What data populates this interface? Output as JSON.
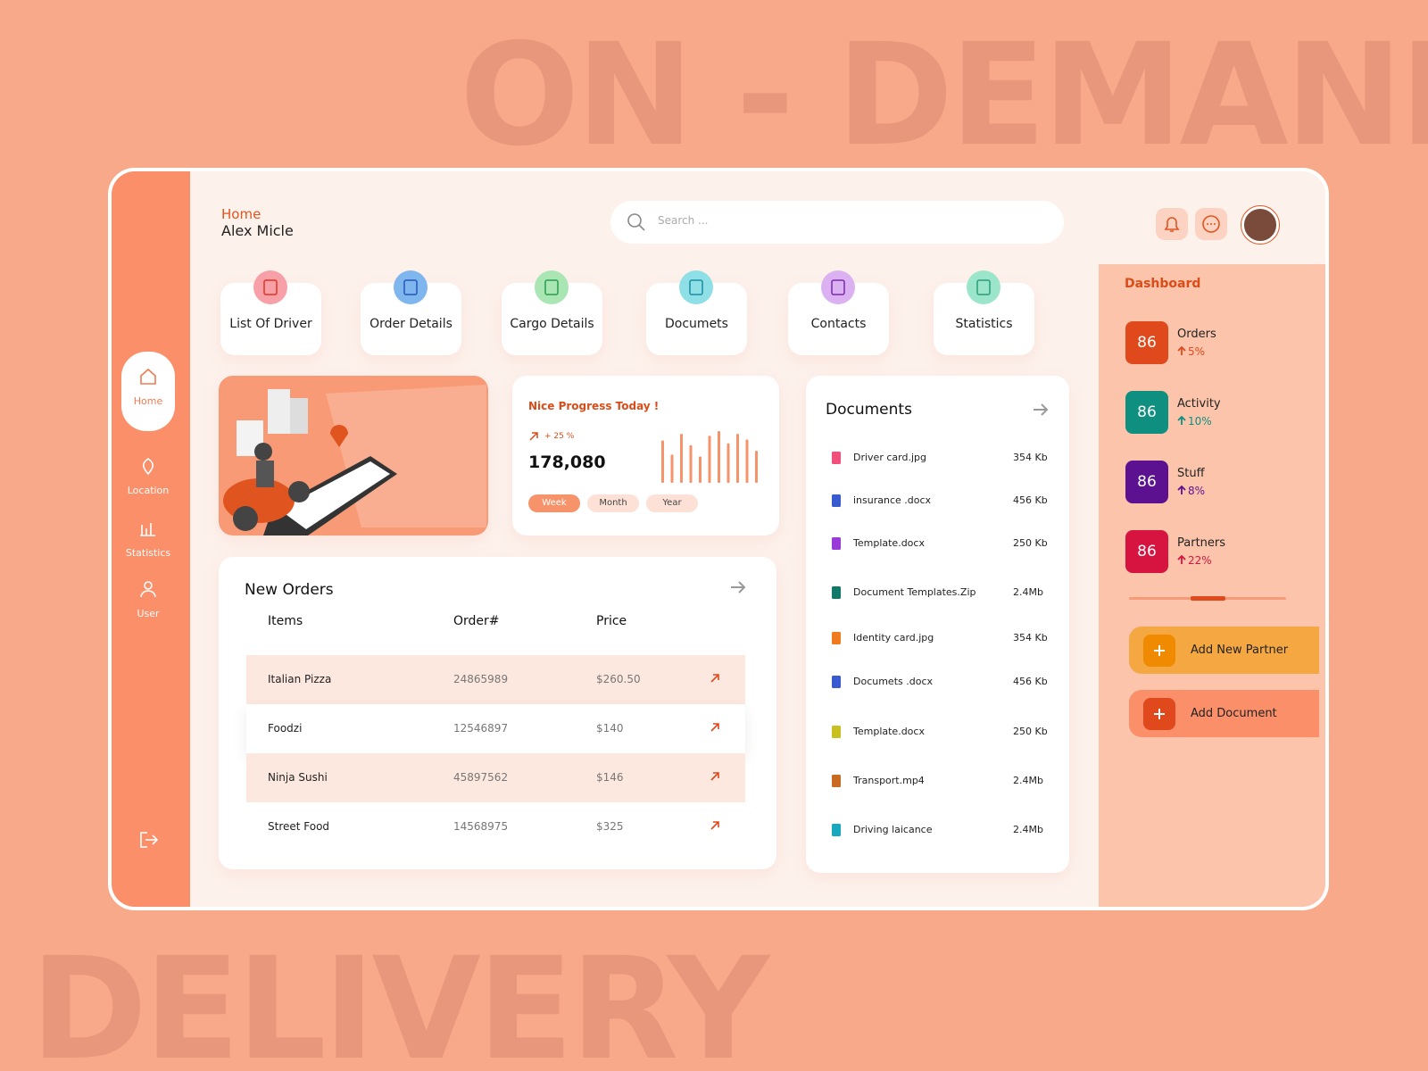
{
  "background_text": [
    "ON - DEMAND",
    "DELIVERY"
  ],
  "header": {
    "breadcrumb": "Home",
    "user": "Alex Micle",
    "search_placeholder": "Search ..."
  },
  "sidebar": {
    "items": [
      "Home",
      "Location",
      "Statistics",
      "User"
    ]
  },
  "shortcuts": [
    "List Of Driver",
    "Order Details",
    "Cargo Details",
    "Documets",
    "Contacts",
    "Statistics"
  ],
  "progress": {
    "title": "Nice Progress Today !",
    "change": "+ 25 %",
    "value": "178,080",
    "bars": [
      45,
      30,
      52,
      40,
      28,
      50,
      55,
      42,
      52,
      46,
      34
    ],
    "tabs": [
      "Week",
      "Month",
      "Year"
    ]
  },
  "orders": {
    "title": "New Orders",
    "columns": [
      "Items",
      "Order#",
      "Price"
    ],
    "rows": [
      [
        "Italian Pizza",
        "24865989",
        "$260.50"
      ],
      [
        "Foodzi",
        "12546897",
        "$140"
      ],
      [
        "Ninja Sushi",
        "45897562",
        "$146"
      ],
      [
        "Street Food",
        "14568975",
        "$325"
      ]
    ]
  },
  "documents": {
    "title": "Documents",
    "files": [
      {
        "name": "Driver card.jpg",
        "size": "354 Kb"
      },
      {
        "name": "insurance .docx",
        "size": "456 Kb"
      },
      {
        "name": "Template.docx",
        "size": "250 Kb"
      },
      {
        "name": "Document Templates.Zip",
        "size": "2.4Mb"
      },
      {
        "name": "Identity card.jpg",
        "size": "354 Kb"
      },
      {
        "name": "Documets .docx",
        "size": "456 Kb"
      },
      {
        "name": "Template.docx",
        "size": "250 Kb"
      },
      {
        "name": "Transport.mp4",
        "size": "2.4Mb"
      },
      {
        "name": "Driving laicance",
        "size": "2.4Mb"
      }
    ]
  },
  "dashboard": {
    "title": "Dashboard",
    "stats": [
      {
        "value": 86,
        "label": "Orders",
        "change": "5%"
      },
      {
        "value": 86,
        "label": "Activity",
        "change": "10%"
      },
      {
        "value": 86,
        "label": "Stuff",
        "change": "8%"
      },
      {
        "value": 86,
        "label": "Partners",
        "change": "22%"
      }
    ],
    "actions": [
      "Add New Partner",
      "Add Document"
    ]
  }
}
